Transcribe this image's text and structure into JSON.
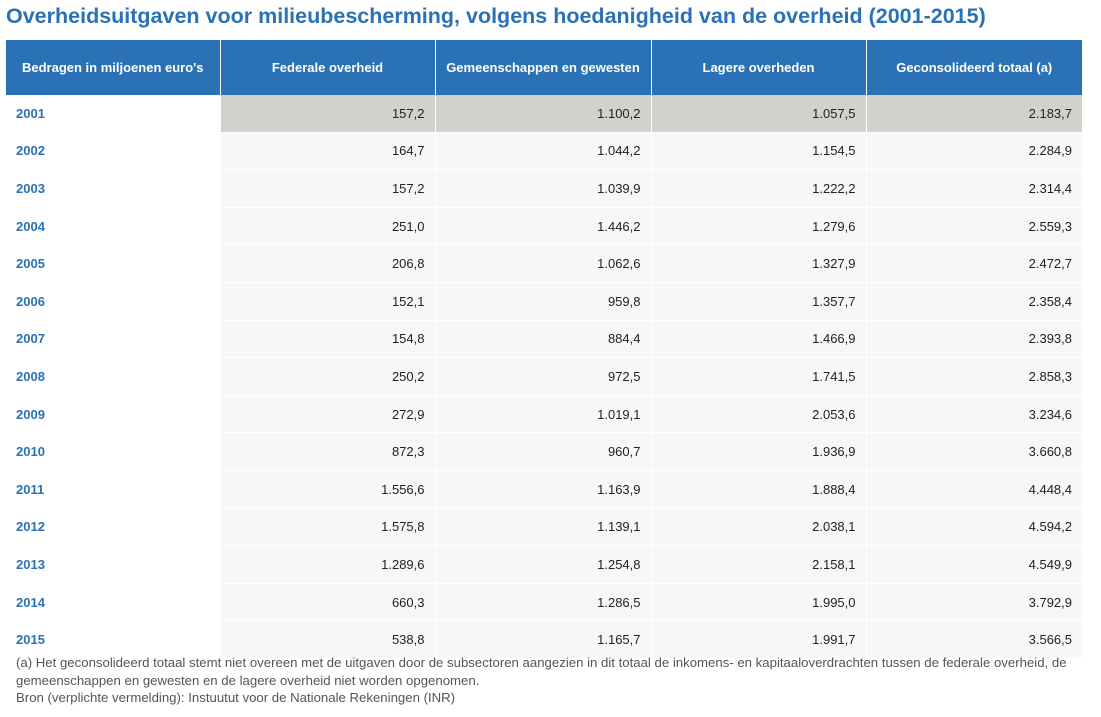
{
  "title": "Overheidsuitgaven voor milieubescherming, volgens hoedanigheid van de overheid (2001-2015)",
  "table": {
    "headers": [
      "Bedragen in miljoenen euro's",
      "Federale overheid",
      "Gemeenschappen en gewesten",
      "Lagere overheden",
      "Geconsolideerd totaal (a)"
    ],
    "rows": [
      [
        "2001",
        "157,2",
        "1.100,2",
        "1.057,5",
        "2.183,7"
      ],
      [
        "2002",
        "164,7",
        "1.044,2",
        "1.154,5",
        "2.284,9"
      ],
      [
        "2003",
        "157,2",
        "1.039,9",
        "1.222,2",
        "2.314,4"
      ],
      [
        "2004",
        "251,0",
        "1.446,2",
        "1.279,6",
        "2.559,3"
      ],
      [
        "2005",
        "206,8",
        "1.062,6",
        "1.327,9",
        "2.472,7"
      ],
      [
        "2006",
        "152,1",
        "959,8",
        "1.357,7",
        "2.358,4"
      ],
      [
        "2007",
        "154,8",
        "884,4",
        "1.466,9",
        "2.393,8"
      ],
      [
        "2008",
        "250,2",
        "972,5",
        "1.741,5",
        "2.858,3"
      ],
      [
        "2009",
        "272,9",
        "1.019,1",
        "2.053,6",
        "3.234,6"
      ],
      [
        "2010",
        "872,3",
        "960,7",
        "1.936,9",
        "3.660,8"
      ],
      [
        "2011",
        "1.556,6",
        "1.163,9",
        "1.888,4",
        "4.448,4"
      ],
      [
        "2012",
        "1.575,8",
        "1.139,1",
        "2.038,1",
        "4.594,2"
      ],
      [
        "2013",
        "1.289,6",
        "1.254,8",
        "2.158,1",
        "4.549,9"
      ],
      [
        "2014",
        "660,3",
        "1.286,5",
        "1.995,0",
        "3.792,9"
      ],
      [
        "2015",
        "538,8",
        "1.165,7",
        "1.991,7",
        "3.566,5"
      ]
    ],
    "highlighted_row": "2001"
  },
  "notes": {
    "footnote": "(a) Het geconsolideerd totaal stemt niet overeen met de uitgaven door de subsectoren aangezien in dit totaal de inkomens- en kapitaaloverdrachten tussen de federale overheid, de gemeenschappen en gewesten en de lagere overheid niet worden opgenomen.",
    "source": "Bron (verplichte vermelding): Instuutut voor de Nationale Rekeningen (INR)"
  },
  "colors": {
    "accent": "#2a72b5",
    "header_text": "#ffffff",
    "row_background": "#f7f7f7",
    "highlight_background": "#d2d2cd",
    "note_text": "#555555"
  }
}
